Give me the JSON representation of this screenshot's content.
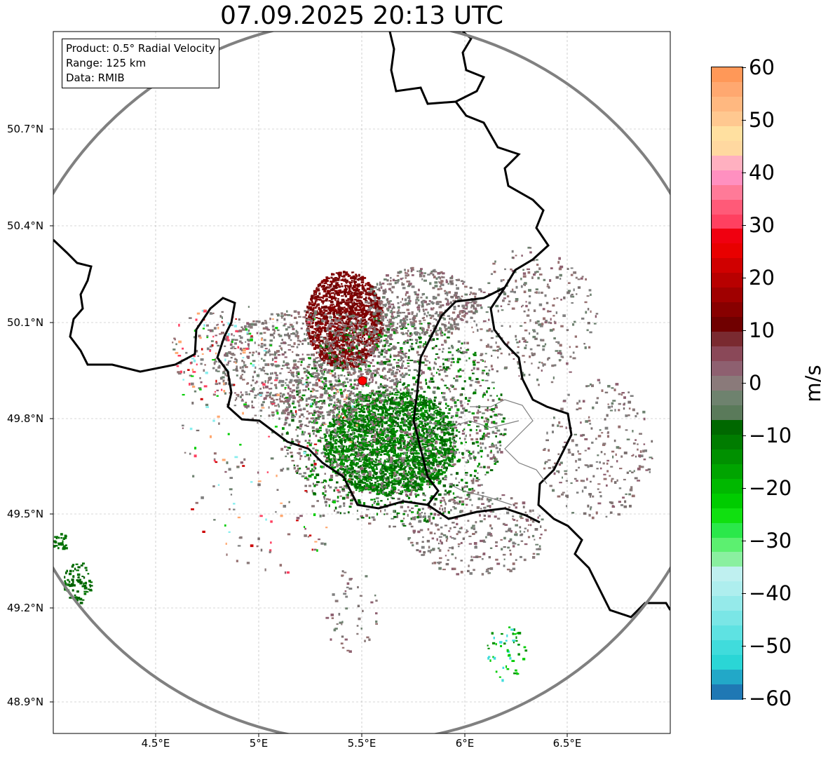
{
  "title": "07.09.2025 20:13 UTC",
  "info_box": {
    "product": "Product: 0.5° Radial Velocity",
    "range": "Range: 125 km",
    "data": "Data: RMIB"
  },
  "lat_labels": [
    "50.7°N",
    "50.4°N",
    "50.1°N",
    "49.8°N",
    "49.5°N",
    "49.2°N",
    "48.9°N"
  ],
  "lon_labels": [
    "4.5°E",
    "5°E",
    "5.5°E",
    "6°E",
    "6.5°E"
  ],
  "colorbar": {
    "unit": "m/s",
    "tick_labels": [
      "60",
      "50",
      "40",
      "30",
      "20",
      "10",
      "0",
      "−10",
      "−20",
      "−30",
      "−40",
      "−50",
      "−60"
    ],
    "range": [
      -60,
      60
    ],
    "colors": [
      "#1f78b4",
      "#22a8c8",
      "#2ad6d6",
      "#40dcdc",
      "#5ee2e2",
      "#7ae6e6",
      "#95eaea",
      "#aeeeee",
      "#bff0f0",
      "#8af0a0",
      "#5cf070",
      "#2ae84a",
      "#10e010",
      "#00cc00",
      "#00b800",
      "#00a400",
      "#009000",
      "#007c00",
      "#006800",
      "#5a7a5a",
      "#6e826e",
      "#8a7a7a",
      "#8e6070",
      "#8a4858",
      "#7a2a30",
      "#700000",
      "#880000",
      "#a00000",
      "#b80000",
      "#d00000",
      "#e80000",
      "#f00010",
      "#ff4060",
      "#ff5a78",
      "#ff7a98",
      "#ff90c0",
      "#ffb0c0",
      "#ffd8a0",
      "#ffe0a0",
      "#ffc890",
      "#ffb880",
      "#ffa870",
      "#ff9858"
    ]
  },
  "radar_site": {
    "lon": 5.505,
    "lat": 49.914
  },
  "colors": {
    "range_ring": "#808080",
    "border": "#000000",
    "grid": "#b0b0b0",
    "site": "#ff0000"
  }
}
